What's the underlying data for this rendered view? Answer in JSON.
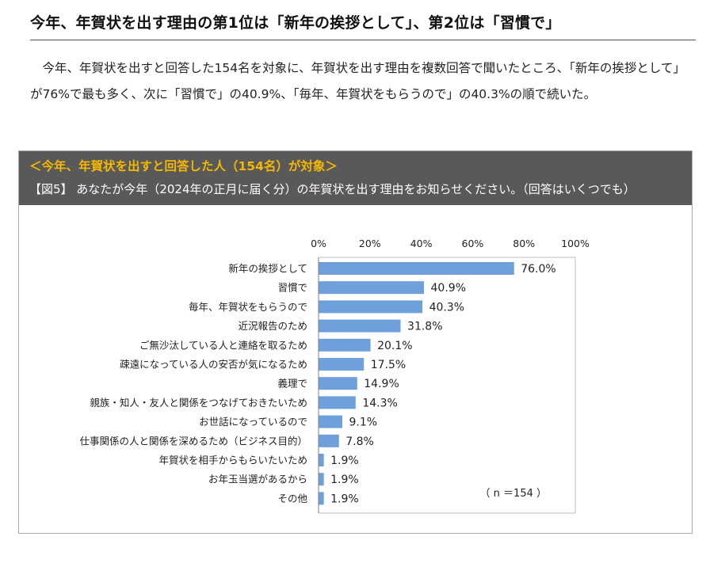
{
  "headline": "今年、年賀状を出す理由の第1位は「新年の挨拶として」、第2位は「習慣で」",
  "lead": "今年、年賀状を出すと回答した154名を対象に、年賀状を出す理由を複数回答で聞いたところ、「新年の挨拶として」が76%で最も多く、次に「習慣で」の40.9%、「毎年、年賀状をもらうので」の40.3%の順で続いた。",
  "figure": {
    "subheading": "＜今年、年賀状を出すと回答した人（154名）が対象＞",
    "title": "【図5】 あなたが今年（2024年の正月に届く分）の年賀状を出す理由をお知らせください。（回答はいくつでも）",
    "n_note": "（ n ＝154 ）"
  },
  "chart_data": {
    "type": "bar",
    "orientation": "horizontal",
    "bar_color": "#6fa0dc",
    "x_ticks": [
      "0%",
      "20%",
      "40%",
      "60%",
      "80%",
      "100%"
    ],
    "xlim": [
      0,
      100
    ],
    "categories": [
      "新年の挨拶として",
      "習慣で",
      "毎年、年賀状をもらうので",
      "近況報告のため",
      "ご無沙汰している人と連絡を取るため",
      "疎遠になっている人の安否が気になるため",
      "義理で",
      "親族・知人・友人と関係をつなげておきたいため",
      "お世話になっているので",
      "仕事関係の人と関係を深めるため（ビジネス目的）",
      "年賀状を相手からもらいたいため",
      "お年玉当選があるから",
      "その他"
    ],
    "values": [
      76.0,
      40.9,
      40.3,
      31.8,
      20.1,
      17.5,
      14.9,
      14.3,
      9.1,
      7.8,
      1.9,
      1.9,
      1.9
    ],
    "value_labels": [
      "76.0%",
      "40.9%",
      "40.3%",
      "31.8%",
      "20.1%",
      "17.5%",
      "14.9%",
      "14.3%",
      "9.1%",
      "7.8%",
      "1.9%",
      "1.9%",
      "1.9%"
    ]
  }
}
